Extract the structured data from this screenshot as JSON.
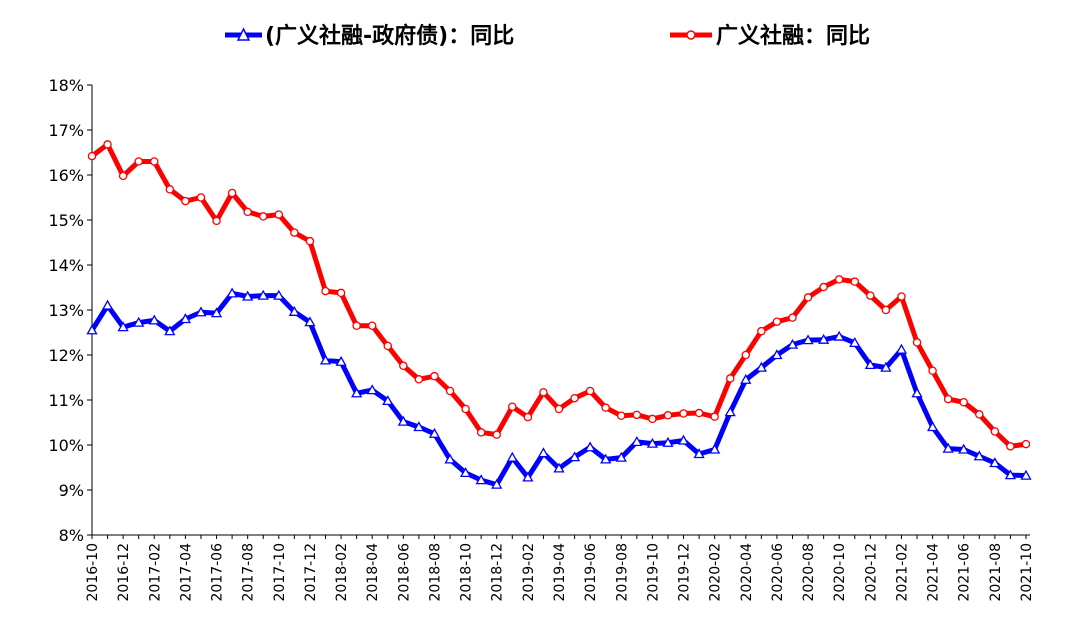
{
  "chart_data": {
    "type": "line",
    "ylim": [
      8,
      18
    ],
    "y_tick_labels": [
      "18%",
      "17%",
      "16%",
      "15%",
      "14%",
      "13%",
      "12%",
      "11%",
      "10%",
      "9%",
      "8%"
    ],
    "grid": false,
    "legend_position": "top",
    "x_tick_labels": [
      "2016-10",
      "2016-12",
      "2017-02",
      "2017-04",
      "2017-06",
      "2017-08",
      "2017-10",
      "2017-12",
      "2018-02",
      "2018-04",
      "2018-06",
      "2018-08",
      "2018-10",
      "2018-12",
      "2019-02",
      "2019-04",
      "2019-06",
      "2019-08",
      "2019-10",
      "2019-12",
      "2020-02",
      "2020-04",
      "2020-06",
      "2020-08",
      "2020-10",
      "2020-12",
      "2021-02",
      "2021-04",
      "2021-06",
      "2021-08",
      "2021-10"
    ],
    "x": [
      "2016-10",
      "2016-11",
      "2016-12",
      "2017-01",
      "2017-02",
      "2017-03",
      "2017-04",
      "2017-05",
      "2017-06",
      "2017-07",
      "2017-08",
      "2017-09",
      "2017-10",
      "2017-11",
      "2017-12",
      "2018-01",
      "2018-02",
      "2018-03",
      "2018-04",
      "2018-05",
      "2018-06",
      "2018-07",
      "2018-08",
      "2018-09",
      "2018-10",
      "2018-11",
      "2018-12",
      "2019-01",
      "2019-02",
      "2019-03",
      "2019-04",
      "2019-05",
      "2019-06",
      "2019-07",
      "2019-08",
      "2019-09",
      "2019-10",
      "2019-11",
      "2019-12",
      "2020-01",
      "2020-02",
      "2020-03",
      "2020-04",
      "2020-05",
      "2020-06",
      "2020-07",
      "2020-08",
      "2020-09",
      "2020-10",
      "2020-11",
      "2020-12",
      "2021-01",
      "2021-02",
      "2021-03",
      "2021-04",
      "2021-05",
      "2021-06",
      "2021-07",
      "2021-08",
      "2021-09",
      "2021-10"
    ],
    "series": [
      {
        "name": "(广义社融-政府债)：同比",
        "color": "#0000ff",
        "marker": "triangle",
        "values": [
          12.55,
          13.1,
          12.62,
          12.72,
          12.77,
          12.53,
          12.8,
          12.95,
          12.93,
          13.37,
          13.3,
          13.32,
          13.32,
          12.96,
          12.73,
          11.88,
          11.85,
          11.15,
          11.22,
          10.98,
          10.52,
          10.4,
          10.25,
          9.68,
          9.38,
          9.22,
          9.12,
          9.72,
          9.28,
          9.82,
          9.48,
          9.73,
          9.95,
          9.68,
          9.72,
          10.07,
          10.03,
          10.05,
          10.1,
          9.8,
          9.9,
          10.73,
          11.45,
          11.72,
          12.0,
          12.23,
          12.33,
          12.34,
          12.41,
          12.27,
          11.78,
          11.72,
          12.12,
          11.15,
          10.4,
          9.92,
          9.9,
          9.75,
          9.6,
          9.33,
          9.32
        ]
      },
      {
        "name": "广义社融：同比",
        "color": "#ff0000",
        "marker": "circle",
        "values": [
          16.42,
          16.68,
          15.98,
          16.3,
          16.3,
          15.68,
          15.42,
          15.5,
          14.98,
          15.6,
          15.18,
          15.08,
          15.12,
          14.72,
          14.53,
          13.42,
          13.38,
          12.65,
          12.65,
          12.2,
          11.76,
          11.46,
          11.53,
          11.2,
          10.8,
          10.28,
          10.23,
          10.85,
          10.62,
          11.17,
          10.8,
          11.04,
          11.2,
          10.83,
          10.65,
          10.67,
          10.58,
          10.66,
          10.7,
          10.71,
          10.63,
          11.48,
          12.0,
          12.53,
          12.74,
          12.83,
          13.28,
          13.51,
          13.68,
          13.63,
          13.32,
          13.0,
          13.3,
          12.28,
          11.65,
          11.02,
          10.95,
          10.68,
          10.3,
          9.97,
          10.02
        ]
      }
    ]
  }
}
